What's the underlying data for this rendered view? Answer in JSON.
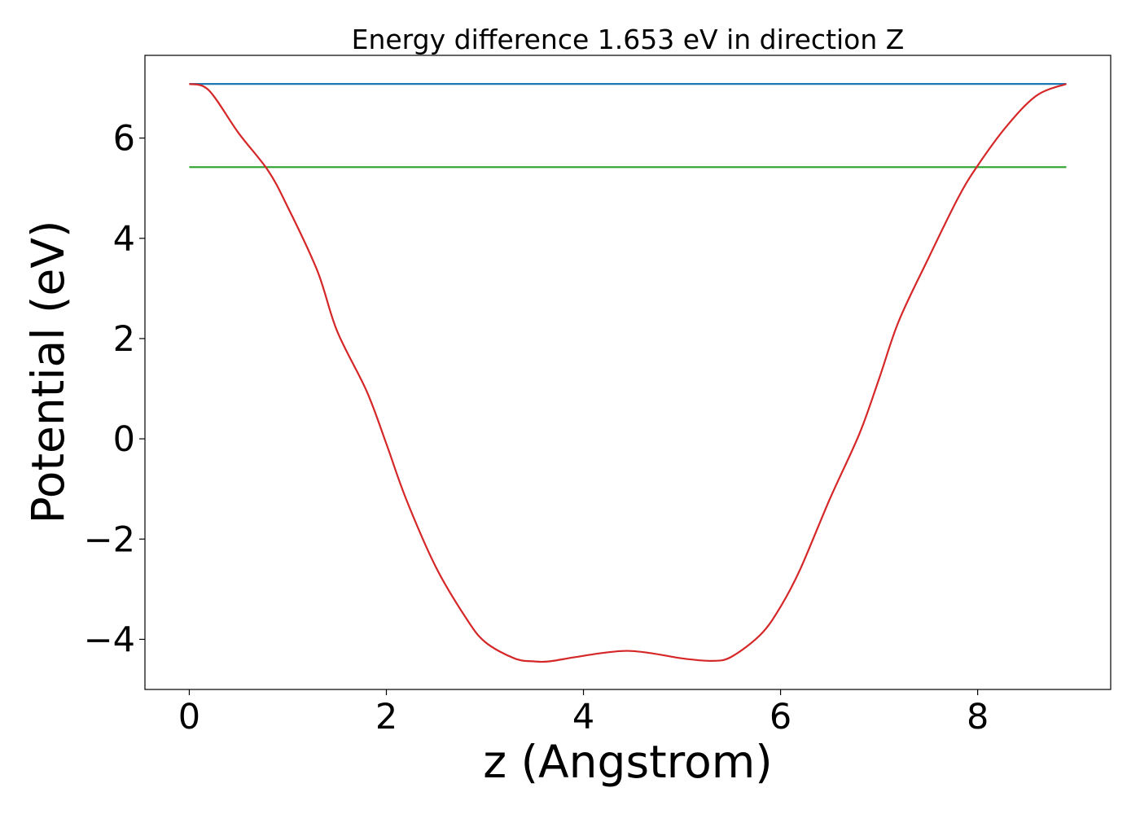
{
  "chart_data": {
    "type": "line",
    "title": "Energy difference 1.653 eV in direction Z",
    "xlabel": "z (Angstrom)",
    "ylabel": "Potential (eV)",
    "xlim": [
      -0.45,
      9.35
    ],
    "ylim": [
      -5.0,
      7.65
    ],
    "xticks": [
      0,
      2,
      4,
      6,
      8
    ],
    "yticks": [
      -4,
      -2,
      0,
      2,
      4,
      6
    ],
    "xtick_labels": [
      "0",
      "2",
      "4",
      "6",
      "8"
    ],
    "ytick_labels": [
      "−4",
      "−2",
      "0",
      "2",
      "4",
      "6"
    ],
    "grid": false,
    "series": [
      {
        "color": "#1f77b4",
        "x": [
          0.0,
          8.9
        ],
        "y": [
          7.08,
          7.08
        ]
      },
      {
        "color": "#2ca02c",
        "x": [
          0.0,
          8.9
        ],
        "y": [
          5.42,
          5.42
        ]
      },
      {
        "color": "#d62728",
        "x": [
          0.0,
          0.2,
          0.5,
          0.8,
          1.0,
          1.3,
          1.5,
          1.8,
          2.0,
          2.2,
          2.5,
          2.8,
          3.0,
          3.3,
          3.5,
          3.65,
          3.9,
          4.2,
          4.45,
          4.7,
          5.0,
          5.3,
          5.5,
          5.8,
          6.0,
          6.2,
          6.5,
          6.8,
          7.0,
          7.2,
          7.5,
          7.8,
          8.0,
          8.3,
          8.6,
          8.9
        ],
        "y": [
          7.08,
          6.95,
          6.1,
          5.35,
          4.62,
          3.35,
          2.15,
          0.95,
          -0.1,
          -1.2,
          -2.55,
          -3.55,
          -4.05,
          -4.38,
          -4.44,
          -4.44,
          -4.36,
          -4.27,
          -4.23,
          -4.28,
          -4.38,
          -4.43,
          -4.35,
          -3.9,
          -3.35,
          -2.6,
          -1.2,
          0.1,
          1.2,
          2.35,
          3.6,
          4.8,
          5.45,
          6.25,
          6.85,
          7.08
        ]
      }
    ]
  }
}
